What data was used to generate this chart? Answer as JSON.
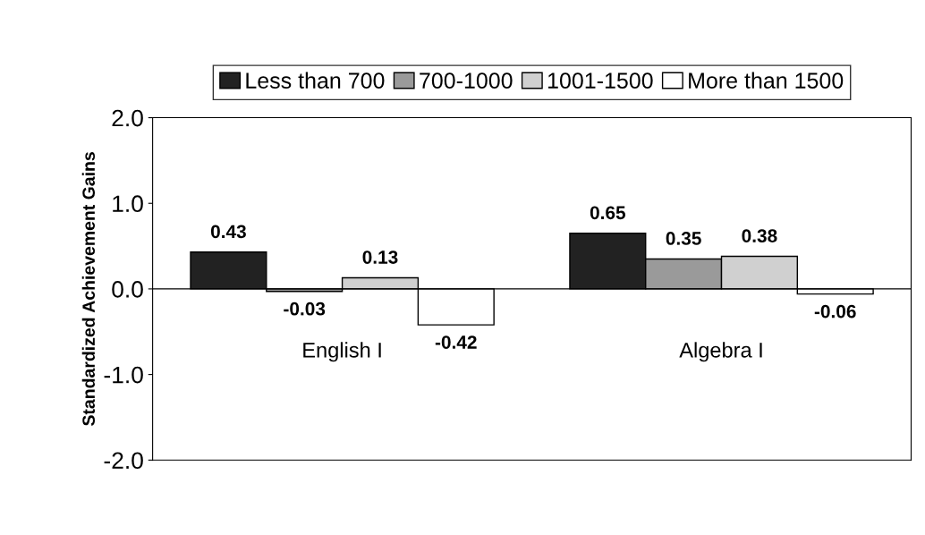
{
  "chart_data": {
    "type": "bar",
    "ylabel": "Standardized Achievement Gains",
    "categories": [
      "English I",
      "Algebra I"
    ],
    "series": [
      {
        "name": "Less than 700",
        "color": "#222222",
        "values": [
          0.43,
          0.65
        ]
      },
      {
        "name": "700-1000",
        "color": "#9a9a9a",
        "values": [
          -0.03,
          0.35
        ]
      },
      {
        "name": "1001-1500",
        "color": "#d0d0d0",
        "values": [
          0.13,
          0.38
        ]
      },
      {
        "name": "More than 1500",
        "color": "#ffffff",
        "values": [
          -0.42,
          -0.06
        ]
      }
    ],
    "ylim": [
      -2,
      2
    ],
    "yticks": [
      {
        "value": -2,
        "label": "-2.0"
      },
      {
        "value": -1,
        "label": "-1.0"
      },
      {
        "value": 0,
        "label": "0.0"
      },
      {
        "value": 1,
        "label": "1.0"
      },
      {
        "value": 2,
        "label": "2.0"
      }
    ],
    "data_labels": true,
    "grid": false,
    "legend": "top"
  }
}
